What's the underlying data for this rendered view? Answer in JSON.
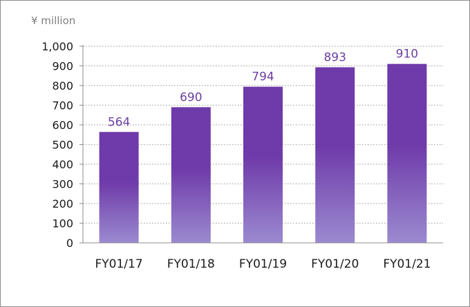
{
  "unit_label": "¥ million",
  "chart_data": {
    "type": "bar",
    "categories": [
      "FY01/17",
      "FY01/18",
      "FY01/19",
      "FY01/20",
      "FY01/21"
    ],
    "values": [
      564,
      690,
      794,
      893,
      910
    ],
    "data_labels": [
      "564",
      "690",
      "794",
      "893",
      "910"
    ],
    "ylabel": "¥ million",
    "xlabel": "",
    "ylim": [
      0,
      1000
    ],
    "yticks": [
      0,
      100,
      200,
      300,
      400,
      500,
      600,
      700,
      800,
      900,
      1000
    ],
    "ytick_labels": [
      "0",
      "100",
      "200",
      "300",
      "400",
      "500",
      "600",
      "700",
      "800",
      "900",
      "1,000"
    ],
    "grid": true,
    "grid_style": "dotted",
    "legend": "none"
  },
  "colors": {
    "bar_top": "#6f3aa9",
    "bar_bottom": "#9b8ad0",
    "data_label": "#6b3fa0",
    "gridline": "#a6a6a6",
    "axis": "#8c8c8c",
    "frame": "#8c8c8c"
  }
}
